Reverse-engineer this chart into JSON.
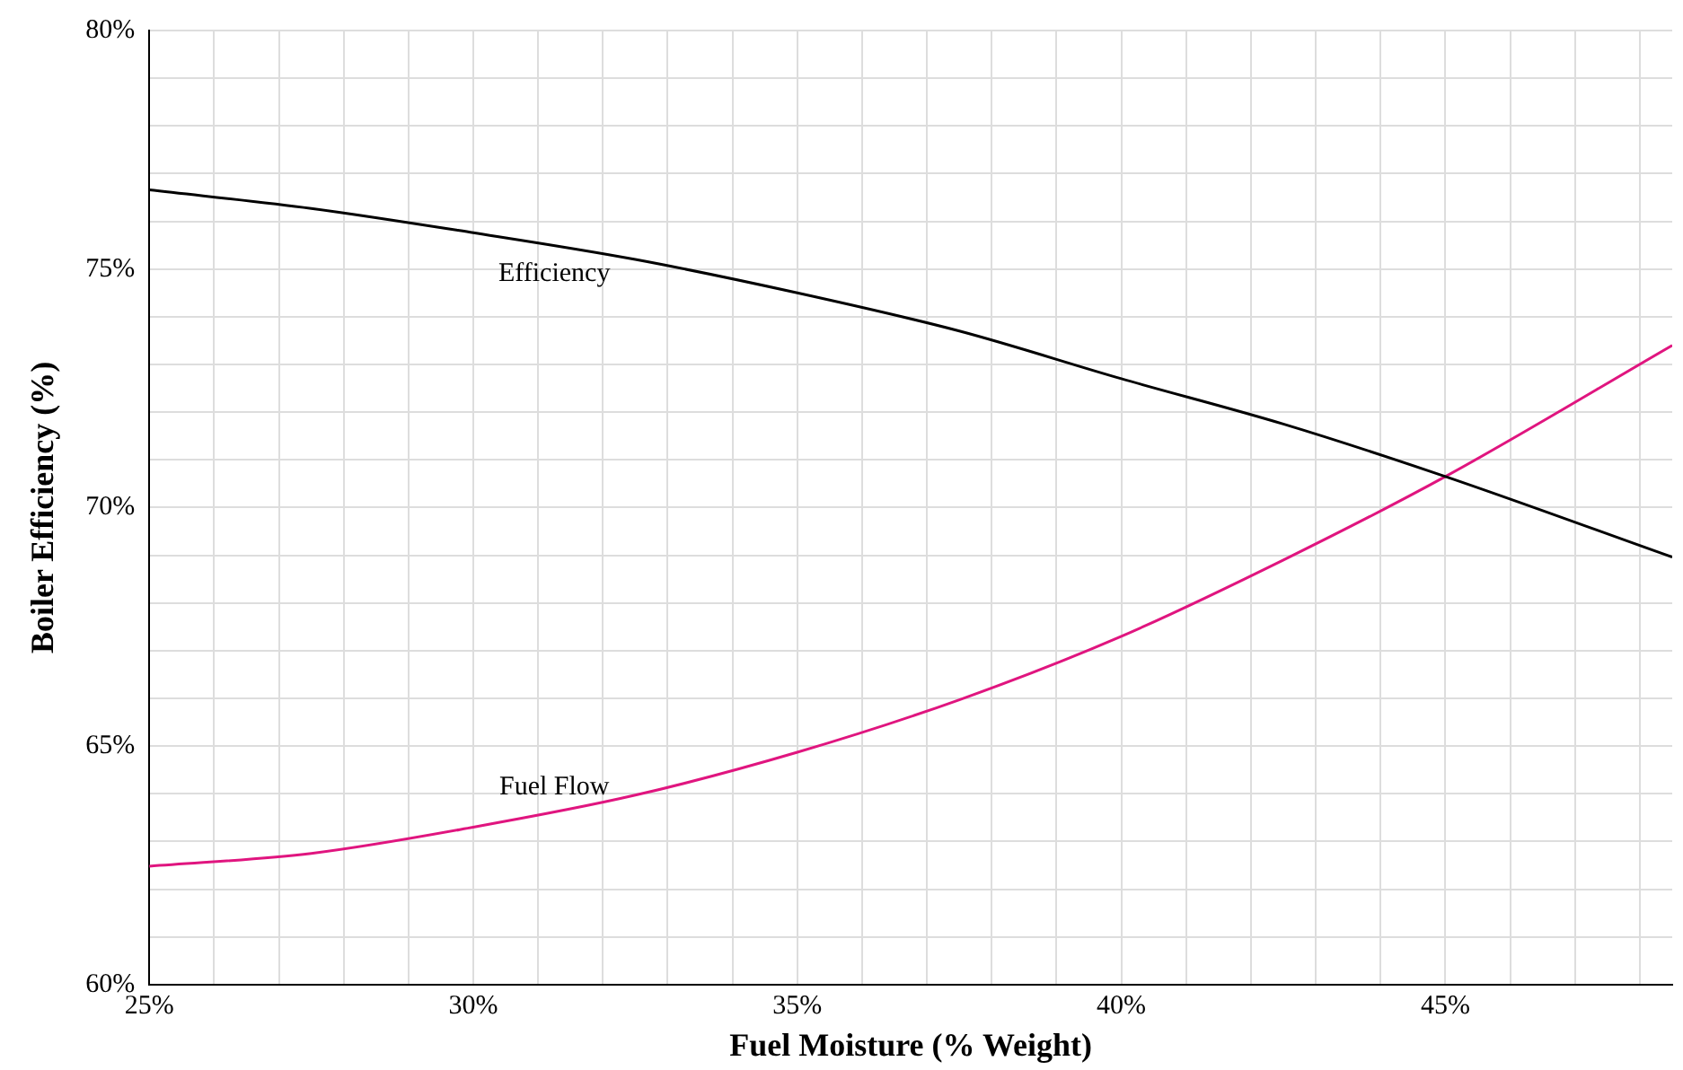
{
  "chart_data": {
    "type": "line",
    "xlabel": "Fuel Moisture (% Weight)",
    "ylabel": "Boiler Efficiency (%)",
    "x": [
      25,
      27.5,
      30,
      32.5,
      35,
      37.5,
      40,
      42.5,
      45,
      48.5
    ],
    "series": [
      {
        "name": "Efficiency",
        "color": "#000000",
        "values": [
          76.66,
          76.27,
          75.76,
          75.2,
          74.5,
          73.7,
          72.7,
          71.75,
          70.65,
          68.96
        ]
      },
      {
        "name": "Fuel Flow",
        "color": "#e0157f",
        "values": [
          62.48,
          62.75,
          63.3,
          63.97,
          64.87,
          65.97,
          67.3,
          68.9,
          70.65,
          73.4
        ]
      }
    ],
    "xlim": [
      25,
      48.5
    ],
    "xticks": [
      {
        "value": 25,
        "label": "25%"
      },
      {
        "value": 26,
        "label": null
      },
      {
        "value": 27,
        "label": null
      },
      {
        "value": 28,
        "label": null
      },
      {
        "value": 29,
        "label": null
      },
      {
        "value": 30,
        "label": "30%"
      },
      {
        "value": 31,
        "label": null
      },
      {
        "value": 32,
        "label": null
      },
      {
        "value": 33,
        "label": null
      },
      {
        "value": 34,
        "label": null
      },
      {
        "value": 35,
        "label": "35%"
      },
      {
        "value": 36,
        "label": null
      },
      {
        "value": 37,
        "label": null
      },
      {
        "value": 38,
        "label": null
      },
      {
        "value": 39,
        "label": null
      },
      {
        "value": 40,
        "label": "40%"
      },
      {
        "value": 41,
        "label": null
      },
      {
        "value": 42,
        "label": null
      },
      {
        "value": 43,
        "label": null
      },
      {
        "value": 44,
        "label": null
      },
      {
        "value": 45,
        "label": "45%"
      },
      {
        "value": 46,
        "label": null
      },
      {
        "value": 47,
        "label": null
      },
      {
        "value": 48,
        "label": null
      }
    ],
    "ylim": [
      60,
      80
    ],
    "yticks": [
      {
        "value": 60,
        "label": "60%"
      },
      {
        "value": 61,
        "label": null
      },
      {
        "value": 62,
        "label": null
      },
      {
        "value": 63,
        "label": null
      },
      {
        "value": 64,
        "label": null
      },
      {
        "value": 65,
        "label": "65%"
      },
      {
        "value": 66,
        "label": null
      },
      {
        "value": 67,
        "label": null
      },
      {
        "value": 68,
        "label": null
      },
      {
        "value": 69,
        "label": null
      },
      {
        "value": 70,
        "label": "70%"
      },
      {
        "value": 71,
        "label": null
      },
      {
        "value": 72,
        "label": null
      },
      {
        "value": 73,
        "label": null
      },
      {
        "value": 74,
        "label": null
      },
      {
        "value": 75,
        "label": "75%"
      },
      {
        "value": 76,
        "label": null
      },
      {
        "value": 77,
        "label": null
      },
      {
        "value": 78,
        "label": null
      },
      {
        "value": 79,
        "label": null
      },
      {
        "value": 80,
        "label": "80%"
      }
    ],
    "grid": true,
    "legend": false,
    "marker": "none",
    "line_style": "solid"
  }
}
